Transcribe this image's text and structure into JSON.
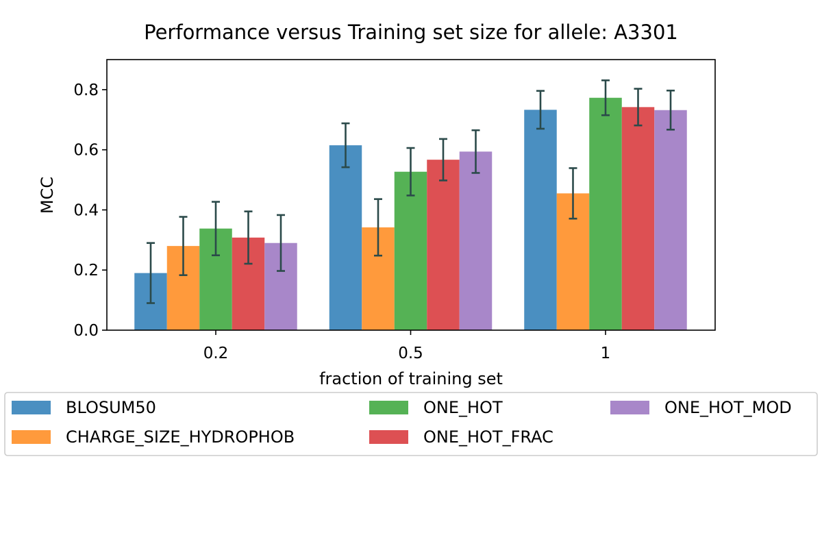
{
  "chart_data": {
    "type": "bar",
    "title": "Performance versus Training set size for allele: A3301",
    "xlabel": "fraction of training set",
    "ylabel": "MCC",
    "categories": [
      "0.2",
      "0.5",
      "1"
    ],
    "ylim": [
      0,
      0.9
    ],
    "yticks": [
      "0.0",
      "0.2",
      "0.4",
      "0.6",
      "0.8"
    ],
    "grid": false,
    "legend_position": "bottom",
    "series": [
      {
        "name": "BLOSUM50",
        "color": "#4a8fc1",
        "values": [
          0.19,
          0.615,
          0.733
        ],
        "errors": [
          0.1,
          0.073,
          0.063
        ]
      },
      {
        "name": "CHARGE_SIZE_HYDROPHOB",
        "color": "#ff9a3c",
        "values": [
          0.28,
          0.342,
          0.455
        ],
        "errors": [
          0.097,
          0.094,
          0.084
        ]
      },
      {
        "name": "ONE_HOT",
        "color": "#55b255",
        "values": [
          0.338,
          0.527,
          0.773
        ],
        "errors": [
          0.089,
          0.079,
          0.058
        ]
      },
      {
        "name": "ONE_HOT_FRAC",
        "color": "#dd5053",
        "values": [
          0.308,
          0.567,
          0.742
        ],
        "errors": [
          0.087,
          0.069,
          0.061
        ]
      },
      {
        "name": "ONE_HOT_MOD",
        "color": "#a887c9",
        "values": [
          0.29,
          0.594,
          0.732
        ],
        "errors": [
          0.093,
          0.071,
          0.065
        ]
      }
    ],
    "error_bar_color": "#2b4a4a"
  }
}
